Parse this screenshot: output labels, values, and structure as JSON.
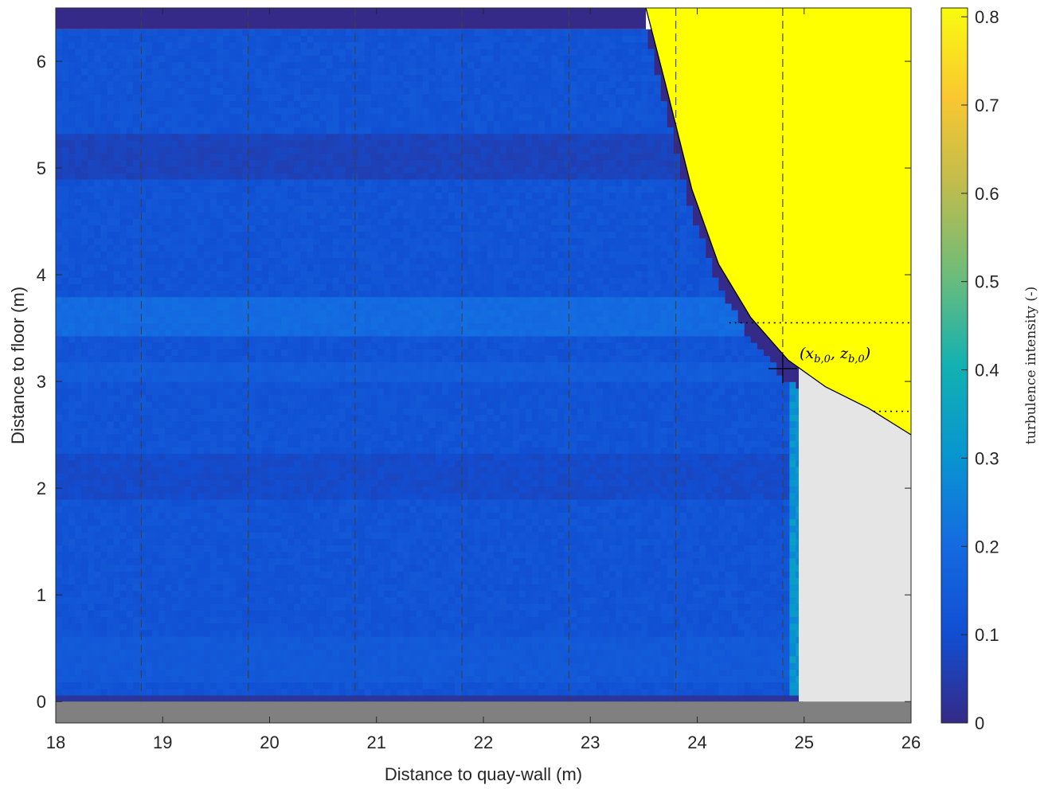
{
  "chart_data": {
    "type": "heatmap",
    "xlabel": "Distance to quay-wall (m)",
    "ylabel": "Distance to floor (m)",
    "xlim": [
      18,
      26
    ],
    "ylim": [
      -0.2,
      6.5
    ],
    "xticks": [
      "18",
      "19",
      "20",
      "21",
      "22",
      "23",
      "24",
      "25",
      "26"
    ],
    "yticks": [
      "0",
      "1",
      "2",
      "3",
      "4",
      "5",
      "6"
    ],
    "colorbar": {
      "label": "turbulence intensity (-)",
      "range": [
        0,
        0.81
      ],
      "ticks": [
        "0",
        "0.1",
        "0.2",
        "0.3",
        "0.4",
        "0.5",
        "0.6",
        "0.7",
        "0.8"
      ],
      "colormap": "parula"
    },
    "field": {
      "x_range": [
        18,
        24.95
      ],
      "y_range": [
        0,
        6.3
      ],
      "typical_value": 0.12,
      "band_values": [
        {
          "y": [
            0.2,
            0.6
          ],
          "value": 0.14
        },
        {
          "y": [
            1.9,
            2.3
          ],
          "value": 0.09
        },
        {
          "y": [
            3.0,
            3.2
          ],
          "value": 0.15
        },
        {
          "y": [
            3.4,
            3.8
          ],
          "value": 0.2
        },
        {
          "y": [
            4.9,
            5.3
          ],
          "value": 0.07
        }
      ],
      "near_wall_column": {
        "x": [
          24.85,
          24.95
        ],
        "value": 0.3
      }
    },
    "vertical_lines_x": [
      18.8,
      19.8,
      20.8,
      21.8,
      22.8,
      23.8,
      24.8
    ],
    "reference_point": {
      "x": 24.8,
      "y": 3.12,
      "label": "(x_{b,0}, z_{b,0})"
    },
    "dotted_levels": [
      {
        "y": 3.55,
        "x": [
          24.3,
          26
        ]
      },
      {
        "y": 2.72,
        "x": [
          25.65,
          26
        ]
      }
    ],
    "floor_band": {
      "y": [
        -0.2,
        0
      ],
      "color": "#808080"
    },
    "structure_boundary": [
      [
        23.52,
        6.5
      ],
      [
        23.7,
        5.8
      ],
      [
        23.95,
        4.8
      ],
      [
        24.2,
        4.1
      ],
      [
        24.5,
        3.6
      ],
      [
        24.85,
        3.2
      ],
      [
        25.2,
        2.95
      ],
      [
        25.6,
        2.75
      ],
      [
        26,
        2.5
      ]
    ],
    "colors": {
      "structure": "#ffff00",
      "blocked_region": "#e5e5e5",
      "floor": "#808080",
      "masked": "#352a87"
    }
  }
}
